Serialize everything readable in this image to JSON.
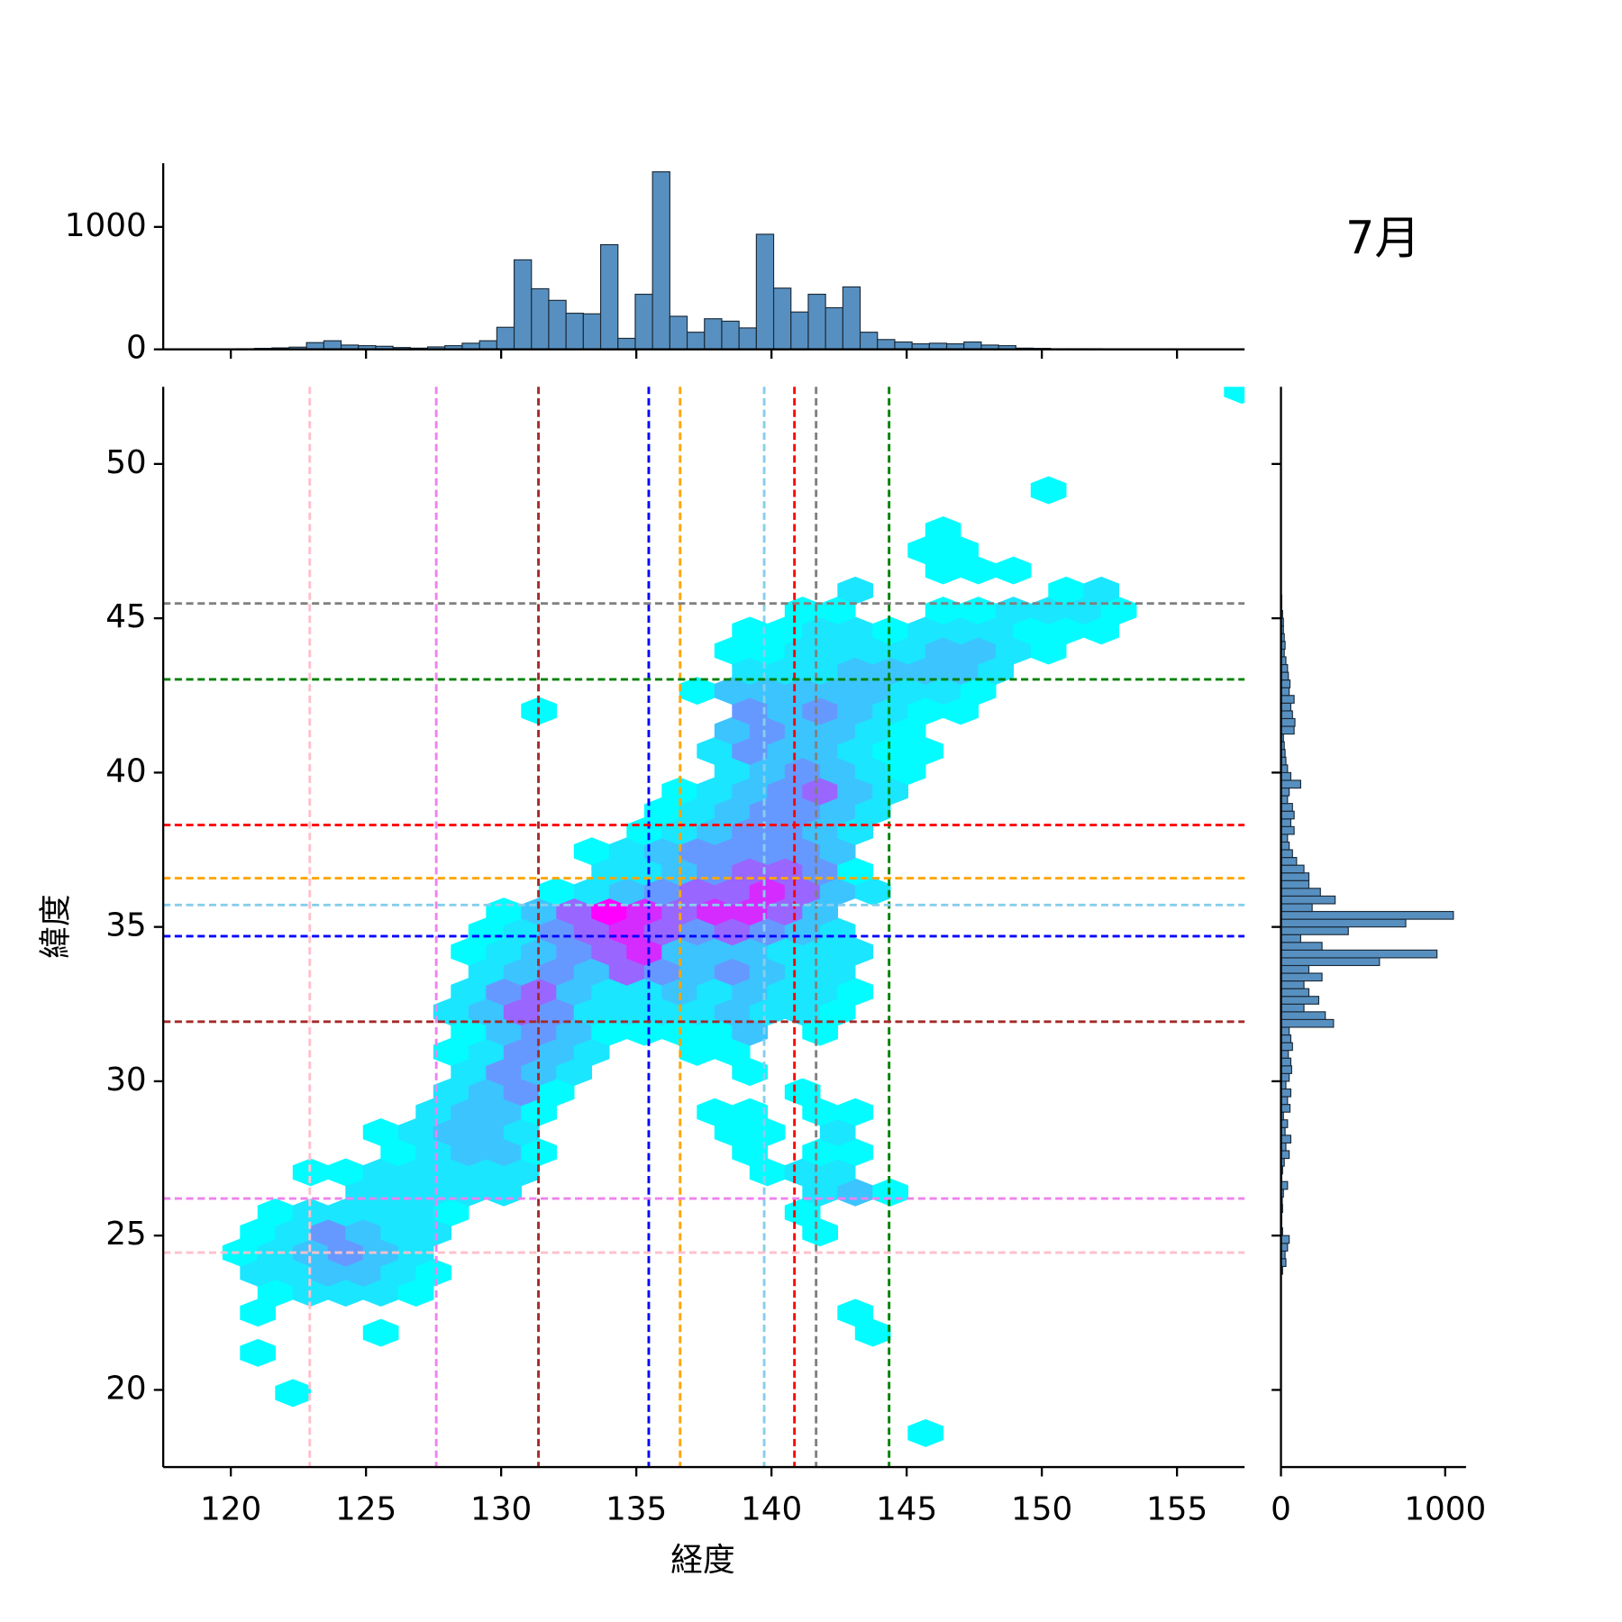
{
  "chart_data": [
    {
      "type": "histogram",
      "orientation": "vertical",
      "color": "#5790c0",
      "edgecolor": "#1c2a38",
      "xlim": [
        117.5,
        157.5
      ],
      "xticks": [
        120,
        125,
        130,
        135,
        140,
        145,
        150,
        155
      ],
      "xticklabels": false,
      "ylim": [
        0,
        1520
      ],
      "yticks": [
        0,
        1000
      ],
      "bins": [
        119.6,
        120.24,
        120.88,
        121.52,
        122.16,
        122.8,
        123.44,
        124.08,
        124.72,
        125.36,
        126,
        126.64,
        127.28,
        127.92,
        128.56,
        129.2,
        129.84,
        130.48,
        131.12,
        131.76,
        132.4,
        133.04,
        133.68,
        134.32,
        134.96,
        135.6,
        136.24,
        136.88,
        137.52,
        138.16,
        138.8,
        139.44,
        140.08,
        140.72,
        141.36,
        142,
        142.64,
        143.28,
        143.92,
        144.56,
        145.2,
        145.84,
        146.48,
        147.12,
        147.76,
        148.4,
        149.04,
        149.68,
        150.32,
        150.96,
        151.6,
        152.24,
        152.88
      ],
      "values": [
        2,
        5,
        8,
        12,
        18,
        55,
        70,
        35,
        30,
        25,
        15,
        10,
        20,
        30,
        50,
        70,
        180,
        731,
        495,
        400,
        295,
        290,
        855,
        90,
        450,
        1450,
        270,
        140,
        250,
        230,
        175,
        940,
        500,
        305,
        450,
        340,
        510,
        140,
        80,
        60,
        45,
        50,
        45,
        60,
        35,
        30,
        10,
        8,
        5,
        5,
        5,
        3,
        2
      ]
    },
    {
      "type": "hexbin",
      "title": "7月",
      "xlabel": "経度",
      "ylabel": "緯度",
      "xlim": [
        117.5,
        157.5
      ],
      "xticks": [
        120,
        125,
        130,
        135,
        140,
        145,
        150,
        155
      ],
      "ylim": [
        17.5,
        52.5
      ],
      "yticks": [
        20,
        25,
        30,
        35,
        40,
        45,
        50
      ],
      "colors": [
        "#00ffff",
        "#ff00ff"
      ],
      "clim": [
        0,
        300
      ],
      "x": [
        145.7,
        122.3,
        121.0,
        125.55,
        143.75,
        121.0,
        143.1,
        121.65,
        122.95,
        124.25,
        125.55,
        126.85,
        121.0,
        122.3,
        123.6,
        124.9,
        126.2,
        127.5,
        120.35,
        121.65,
        122.95,
        124.25,
        125.55,
        126.85,
        121.0,
        122.3,
        123.6,
        124.9,
        126.2,
        127.5,
        141.8,
        121.65,
        122.95,
        124.25,
        125.55,
        126.85,
        128.15,
        141.15,
        124.9,
        126.2,
        127.5,
        128.8,
        130.1,
        141.8,
        143.1,
        144.4,
        122.95,
        124.25,
        125.55,
        126.85,
        128.15,
        129.45,
        130.75,
        139.85,
        141.15,
        142.45,
        126.2,
        127.5,
        128.8,
        130.1,
        131.4,
        139.2,
        141.8,
        143.1,
        125.55,
        126.85,
        128.15,
        129.45,
        130.75,
        138.55,
        139.85,
        142.45,
        127.5,
        128.8,
        130.1,
        131.4,
        137.9,
        139.2,
        141.8,
        143.1,
        128.15,
        129.45,
        130.75,
        132.05,
        141.15,
        128.8,
        130.1,
        131.4,
        132.7,
        139.2,
        128.15,
        129.45,
        130.75,
        132.05,
        133.35,
        137.25,
        138.55,
        128.8,
        130.1,
        131.4,
        132.7,
        134.0,
        135.3,
        136.6,
        137.9,
        139.2,
        141.8,
        128.15,
        129.45,
        130.75,
        132.05,
        133.35,
        134.65,
        135.95,
        137.25,
        138.55,
        139.85,
        141.15,
        142.45,
        128.8,
        130.1,
        131.4,
        132.7,
        134.0,
        135.3,
        136.6,
        137.9,
        139.2,
        140.5,
        141.8,
        143.1,
        129.45,
        130.75,
        132.05,
        133.35,
        134.65,
        135.95,
        137.25,
        138.55,
        139.85,
        141.15,
        142.45,
        128.8,
        130.1,
        131.4,
        132.7,
        134.0,
        135.3,
        136.6,
        137.9,
        139.2,
        140.5,
        141.8,
        143.1,
        129.45,
        130.75,
        132.05,
        133.35,
        134.65,
        135.95,
        137.25,
        138.55,
        139.85,
        141.15,
        142.45,
        130.1,
        131.4,
        132.7,
        134.0,
        135.3,
        136.6,
        137.9,
        139.2,
        140.5,
        141.8,
        132.05,
        133.35,
        134.65,
        135.95,
        137.25,
        138.55,
        139.85,
        141.15,
        142.45,
        143.75,
        134.0,
        135.3,
        136.6,
        137.9,
        139.2,
        140.5,
        141.8,
        143.1,
        133.35,
        134.65,
        135.95,
        137.25,
        138.55,
        139.85,
        141.15,
        142.45,
        135.3,
        136.6,
        137.9,
        139.2,
        140.5,
        141.8,
        143.1,
        135.95,
        137.25,
        138.55,
        139.85,
        141.15,
        142.45,
        143.75,
        136.6,
        137.9,
        139.2,
        140.5,
        141.8,
        143.1,
        144.4,
        138.55,
        139.85,
        141.15,
        142.45,
        143.75,
        145.05,
        137.9,
        139.2,
        140.5,
        141.8,
        143.1,
        144.4,
        145.7,
        138.55,
        139.85,
        141.15,
        142.45,
        143.75,
        145.05,
        131.4,
        139.2,
        140.5,
        141.8,
        143.1,
        144.4,
        145.7,
        147.0,
        137.25,
        138.55,
        139.85,
        141.15,
        142.45,
        143.75,
        145.05,
        146.35,
        147.65,
        139.2,
        140.5,
        141.8,
        143.1,
        144.4,
        145.7,
        147.0,
        148.3,
        138.55,
        139.85,
        141.15,
        142.45,
        143.75,
        145.05,
        146.35,
        147.65,
        148.95,
        150.25,
        139.2,
        140.5,
        141.8,
        143.1,
        144.4,
        145.7,
        147.0,
        148.3,
        149.6,
        150.9,
        152.2,
        141.15,
        142.45,
        146.35,
        147.65,
        148.95,
        150.25,
        151.55,
        152.85,
        143.1,
        150.9,
        152.2,
        146.35,
        147.65,
        148.95,
        145.7,
        147.0,
        146.35,
        150.25,
        157.4
      ],
      "y": [
        18.6,
        19.9,
        21.2,
        21.85,
        21.85,
        22.5,
        22.5,
        23.15,
        23.15,
        23.15,
        23.15,
        23.15,
        23.8,
        23.8,
        23.8,
        23.8,
        23.8,
        23.8,
        24.45,
        24.45,
        24.45,
        24.45,
        24.45,
        24.45,
        25.1,
        25.1,
        25.1,
        25.1,
        25.1,
        25.1,
        25.1,
        25.75,
        25.75,
        25.75,
        25.75,
        25.75,
        25.75,
        25.75,
        26.4,
        26.4,
        26.4,
        26.4,
        26.4,
        26.4,
        26.4,
        26.4,
        27.05,
        27.05,
        27.05,
        27.05,
        27.05,
        27.05,
        27.05,
        27.05,
        27.05,
        27.05,
        27.7,
        27.7,
        27.7,
        27.7,
        27.7,
        27.7,
        27.7,
        27.7,
        28.35,
        28.35,
        28.35,
        28.35,
        28.35,
        28.35,
        28.35,
        28.35,
        29.0,
        29.0,
        29.0,
        29.0,
        29.0,
        29.0,
        29.0,
        29.0,
        29.65,
        29.65,
        29.65,
        29.65,
        29.65,
        30.3,
        30.3,
        30.3,
        30.3,
        30.3,
        30.95,
        30.95,
        30.95,
        30.95,
        30.95,
        30.95,
        30.95,
        31.6,
        31.6,
        31.6,
        31.6,
        31.6,
        31.6,
        31.6,
        31.6,
        31.6,
        31.6,
        32.25,
        32.25,
        32.25,
        32.25,
        32.25,
        32.25,
        32.25,
        32.25,
        32.25,
        32.25,
        32.25,
        32.25,
        32.9,
        32.9,
        32.9,
        32.9,
        32.9,
        32.9,
        32.9,
        32.9,
        32.9,
        32.9,
        32.9,
        32.9,
        33.55,
        33.55,
        33.55,
        33.55,
        33.55,
        33.55,
        33.55,
        33.55,
        33.55,
        33.55,
        33.55,
        34.2,
        34.2,
        34.2,
        34.2,
        34.2,
        34.2,
        34.2,
        34.2,
        34.2,
        34.2,
        34.2,
        34.2,
        34.85,
        34.85,
        34.85,
        34.85,
        34.85,
        34.85,
        34.85,
        34.85,
        34.85,
        34.85,
        34.85,
        35.5,
        35.5,
        35.5,
        35.5,
        35.5,
        35.5,
        35.5,
        35.5,
        35.5,
        35.5,
        36.15,
        36.15,
        36.15,
        36.15,
        36.15,
        36.15,
        36.15,
        36.15,
        36.15,
        36.15,
        36.8,
        36.8,
        36.8,
        36.8,
        36.8,
        36.8,
        36.8,
        36.8,
        37.45,
        37.45,
        37.45,
        37.45,
        37.45,
        37.45,
        37.45,
        37.45,
        38.1,
        38.1,
        38.1,
        38.1,
        38.1,
        38.1,
        38.1,
        38.75,
        38.75,
        38.75,
        38.75,
        38.75,
        38.75,
        38.75,
        39.4,
        39.4,
        39.4,
        39.4,
        39.4,
        39.4,
        39.4,
        40.05,
        40.05,
        40.05,
        40.05,
        40.05,
        40.05,
        40.7,
        40.7,
        40.7,
        40.7,
        40.7,
        40.7,
        40.7,
        41.35,
        41.35,
        41.35,
        41.35,
        41.35,
        41.35,
        42.0,
        42.0,
        42.0,
        42.0,
        42.0,
        42.0,
        42.0,
        42.0,
        42.65,
        42.65,
        42.65,
        42.65,
        42.65,
        42.65,
        42.65,
        42.65,
        42.65,
        43.3,
        43.3,
        43.3,
        43.3,
        43.3,
        43.3,
        43.3,
        43.3,
        43.95,
        43.95,
        43.95,
        43.95,
        43.95,
        43.95,
        43.95,
        43.95,
        43.95,
        43.95,
        44.6,
        44.6,
        44.6,
        44.6,
        44.6,
        44.6,
        44.6,
        44.6,
        44.6,
        44.6,
        44.6,
        45.25,
        45.25,
        45.25,
        45.25,
        45.25,
        45.25,
        45.25,
        45.25,
        45.9,
        45.9,
        45.9,
        46.55,
        46.55,
        46.55,
        47.2,
        47.2,
        47.85,
        49.15,
        52.4
      ],
      "values": [
        4,
        4,
        4,
        4,
        4,
        4,
        4,
        4,
        30,
        30,
        30,
        4,
        30,
        30,
        70,
        70,
        30,
        4,
        4,
        30,
        70,
        120,
        70,
        30,
        4,
        30,
        120,
        70,
        30,
        30,
        4,
        4,
        30,
        30,
        30,
        30,
        4,
        4,
        30,
        30,
        30,
        30,
        30,
        30,
        70,
        4,
        4,
        4,
        30,
        30,
        30,
        30,
        30,
        4,
        30,
        30,
        4,
        30,
        70,
        70,
        4,
        4,
        4,
        4,
        4,
        30,
        70,
        70,
        30,
        4,
        4,
        30,
        30,
        70,
        70,
        4,
        4,
        4,
        4,
        4,
        30,
        70,
        120,
        4,
        4,
        30,
        120,
        70,
        30,
        4,
        4,
        30,
        120,
        70,
        30,
        4,
        4,
        4,
        70,
        120,
        70,
        4,
        4,
        4,
        4,
        70,
        4,
        30,
        70,
        180,
        120,
        30,
        30,
        30,
        30,
        70,
        30,
        30,
        4,
        30,
        120,
        180,
        70,
        30,
        30,
        70,
        30,
        70,
        30,
        30,
        4,
        30,
        70,
        120,
        70,
        180,
        120,
        70,
        120,
        70,
        30,
        30,
        4,
        30,
        70,
        120,
        180,
        250,
        70,
        70,
        70,
        30,
        30,
        30,
        4,
        30,
        120,
        180,
        250,
        180,
        120,
        180,
        120,
        70,
        30,
        4,
        70,
        180,
        300,
        250,
        180,
        250,
        250,
        180,
        70,
        4,
        30,
        70,
        120,
        180,
        180,
        250,
        180,
        70,
        30,
        30,
        30,
        70,
        120,
        180,
        180,
        120,
        4,
        4,
        30,
        70,
        120,
        120,
        120,
        120,
        70,
        4,
        30,
        70,
        120,
        120,
        70,
        30,
        4,
        30,
        70,
        120,
        120,
        70,
        30,
        4,
        30,
        70,
        120,
        180,
        70,
        30,
        30,
        70,
        120,
        70,
        30,
        4,
        30,
        120,
        70,
        70,
        30,
        4,
        4,
        70,
        120,
        70,
        70,
        30,
        4,
        4,
        120,
        70,
        120,
        70,
        30,
        4,
        4,
        4,
        70,
        70,
        70,
        70,
        70,
        30,
        30,
        4,
        30,
        30,
        30,
        70,
        70,
        70,
        70,
        30,
        4,
        4,
        30,
        30,
        30,
        30,
        70,
        70,
        30,
        4,
        4,
        4,
        30,
        30,
        4,
        30,
        30,
        30,
        4,
        4,
        4,
        4,
        4,
        4,
        4,
        30,
        30,
        30,
        4,
        30,
        4,
        30,
        4,
        4,
        4,
        4,
        4,
        4,
        4,
        4
      ],
      "vlines": [
        {
          "value": 122.92,
          "color": "#ffc0cb"
        },
        {
          "value": 127.6,
          "color": "#ee82ee"
        },
        {
          "value": 131.38,
          "color": "#a52a2a"
        },
        {
          "value": 135.46,
          "color": "#0000ff"
        },
        {
          "value": 136.62,
          "color": "#ffa500"
        },
        {
          "value": 139.73,
          "color": "#87ceeb"
        },
        {
          "value": 140.85,
          "color": "#ff0000"
        },
        {
          "value": 141.65,
          "color": "#808080"
        },
        {
          "value": 144.35,
          "color": "#008000"
        }
      ],
      "hlines": [
        {
          "value": 24.45,
          "color": "#ffc0cb"
        },
        {
          "value": 26.2,
          "color": "#ee82ee"
        },
        {
          "value": 31.93,
          "color": "#a52a2a"
        },
        {
          "value": 34.7,
          "color": "#0000ff"
        },
        {
          "value": 36.58,
          "color": "#ffa500"
        },
        {
          "value": 35.71,
          "color": "#87ceeb"
        },
        {
          "value": 38.3,
          "color": "#ff0000"
        },
        {
          "value": 45.48,
          "color": "#808080"
        },
        {
          "value": 43.02,
          "color": "#008000"
        }
      ]
    },
    {
      "type": "histogram",
      "orientation": "horizontal",
      "color": "#5790c0",
      "edgecolor": "#1c2a38",
      "xlim": [
        0,
        1127
      ],
      "xticks": [
        0,
        1000
      ],
      "ylim": [
        17.5,
        52.5
      ],
      "yticks": [
        20,
        25,
        30,
        35,
        40,
        45,
        50
      ],
      "yticklabels": false,
      "bins": [
        23.75,
        24,
        24.25,
        24.5,
        24.75,
        25,
        25.25,
        25.5,
        25.75,
        26,
        26.25,
        26.5,
        26.75,
        27,
        27.25,
        27.5,
        27.75,
        28,
        28.25,
        28.5,
        28.75,
        29,
        29.25,
        29.5,
        29.75,
        30,
        30.25,
        30.5,
        30.75,
        31,
        31.25,
        31.5,
        31.75,
        32,
        32.25,
        32.5,
        32.75,
        33,
        33.25,
        33.5,
        33.75,
        34,
        34.25,
        34.5,
        34.75,
        35,
        35.25,
        35.5,
        35.75,
        36,
        36.25,
        36.5,
        36.75,
        37,
        37.25,
        37.5,
        37.75,
        38,
        38.25,
        38.5,
        38.75,
        39,
        39.25,
        39.5,
        39.75,
        40,
        40.25,
        40.5,
        40.75,
        41,
        41.25,
        41.5,
        41.75,
        42,
        42.25,
        42.5,
        42.75,
        43,
        43.25,
        43.5,
        43.75,
        44,
        44.25,
        44.5,
        44.75,
        45,
        45.25,
        45.5,
        45.75
      ],
      "values": [
        10,
        30,
        25,
        40,
        50,
        10,
        5,
        5,
        10,
        8,
        15,
        40,
        5,
        10,
        20,
        50,
        30,
        60,
        25,
        40,
        15,
        55,
        40,
        60,
        30,
        50,
        65,
        60,
        45,
        70,
        60,
        50,
        320,
        270,
        140,
        230,
        170,
        140,
        250,
        170,
        600,
        950,
        250,
        120,
        410,
        760,
        1050,
        190,
        330,
        240,
        170,
        170,
        140,
        95,
        70,
        50,
        40,
        80,
        60,
        80,
        70,
        40,
        50,
        120,
        60,
        40,
        30,
        25,
        20,
        15,
        80,
        85,
        70,
        60,
        80,
        50,
        55,
        45,
        40,
        30,
        20,
        25,
        20,
        15,
        15,
        10,
        5,
        5
      ]
    }
  ]
}
